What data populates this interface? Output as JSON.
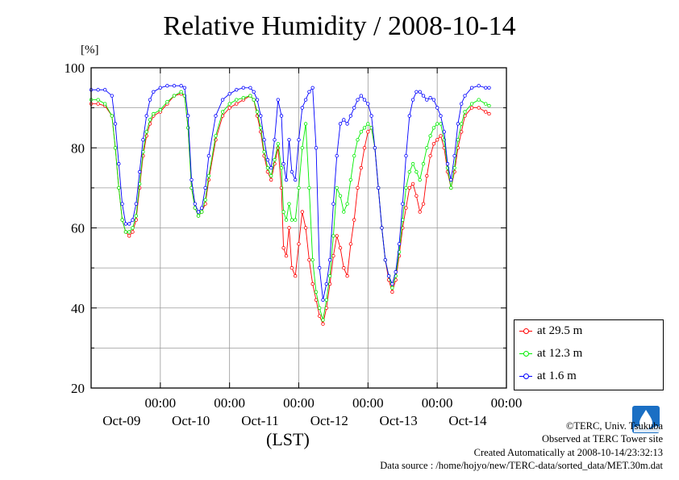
{
  "header": {
    "title": "Relative Humidity / 2008-10-14",
    "unit": "[%]",
    "xaxis_label": "(LST)"
  },
  "credits": {
    "copyright": "©TERC, Univ. Tsukuba",
    "site": "Observed at TERC Tower site",
    "created": "Created Automatically at 2008-10-14/23:32:13",
    "source": "Data source : /home/hojyo/new/TERC-data/sorted_data/MET.30m.dat"
  },
  "chart_data": {
    "type": "line",
    "title": "Relative Humidity / 2008-10-14",
    "ylabel": "[%]",
    "xlabel": "(LST)",
    "ylim": [
      20,
      100
    ],
    "xlim": [
      -0.5,
      5.5
    ],
    "y_ticks": [
      20,
      40,
      60,
      80,
      100
    ],
    "x_ticks": [
      {
        "x": 0.5,
        "time": "00:00",
        "date": "Oct-09"
      },
      {
        "x": 1.5,
        "time": "00:00",
        "date": "Oct-10"
      },
      {
        "x": 2.5,
        "time": "00:00",
        "date": "Oct-11"
      },
      {
        "x": 3.5,
        "time": "00:00",
        "date": "Oct-12"
      },
      {
        "x": 4.5,
        "time": "00:00",
        "date": "Oct-13"
      },
      {
        "x": 5.5,
        "time": "00:00",
        "date": "Oct-14"
      }
    ],
    "grid": true,
    "legend_position": "bottom-right",
    "x_unit": "days from start of plotted window",
    "series": [
      {
        "name": "at 29.5 m",
        "color": "#ff0000",
        "points": [
          [
            -0.5,
            91
          ],
          [
            -0.4,
            91
          ],
          [
            -0.3,
            90.5
          ],
          [
            -0.2,
            88
          ],
          [
            -0.15,
            80
          ],
          [
            -0.1,
            70
          ],
          [
            -0.05,
            62
          ],
          [
            0.0,
            59
          ],
          [
            0.05,
            58
          ],
          [
            0.1,
            59
          ],
          [
            0.15,
            62
          ],
          [
            0.2,
            70
          ],
          [
            0.25,
            78
          ],
          [
            0.3,
            83
          ],
          [
            0.35,
            86
          ],
          [
            0.4,
            88
          ],
          [
            0.5,
            89
          ],
          [
            0.6,
            91
          ],
          [
            0.7,
            93
          ],
          [
            0.8,
            93.5
          ],
          [
            0.85,
            93
          ],
          [
            0.9,
            85
          ],
          [
            0.95,
            70
          ],
          [
            1.0,
            65
          ],
          [
            1.05,
            63
          ],
          [
            1.1,
            64
          ],
          [
            1.15,
            66
          ],
          [
            1.2,
            72
          ],
          [
            1.3,
            82
          ],
          [
            1.4,
            88
          ],
          [
            1.5,
            90
          ],
          [
            1.6,
            91
          ],
          [
            1.7,
            92
          ],
          [
            1.8,
            93
          ],
          [
            1.85,
            92
          ],
          [
            1.9,
            88
          ],
          [
            1.95,
            84
          ],
          [
            2.0,
            78
          ],
          [
            2.05,
            74
          ],
          [
            2.1,
            72
          ],
          [
            2.15,
            76
          ],
          [
            2.2,
            80
          ],
          [
            2.25,
            70
          ],
          [
            2.28,
            55
          ],
          [
            2.32,
            53
          ],
          [
            2.36,
            60
          ],
          [
            2.4,
            50
          ],
          [
            2.45,
            48
          ],
          [
            2.5,
            56
          ],
          [
            2.55,
            64
          ],
          [
            2.6,
            60
          ],
          [
            2.65,
            52
          ],
          [
            2.7,
            46
          ],
          [
            2.75,
            42
          ],
          [
            2.8,
            38
          ],
          [
            2.85,
            36
          ],
          [
            2.9,
            40
          ],
          [
            2.95,
            46
          ],
          [
            3.0,
            53
          ],
          [
            3.05,
            58
          ],
          [
            3.1,
            55
          ],
          [
            3.15,
            50
          ],
          [
            3.2,
            48
          ],
          [
            3.25,
            56
          ],
          [
            3.3,
            62
          ],
          [
            3.35,
            70
          ],
          [
            3.4,
            75
          ],
          [
            3.45,
            80
          ],
          [
            3.5,
            84
          ],
          [
            3.55,
            85
          ],
          [
            3.6,
            80
          ],
          [
            3.65,
            70
          ],
          [
            3.7,
            60
          ],
          [
            3.75,
            52
          ],
          [
            3.8,
            47
          ],
          [
            3.85,
            44
          ],
          [
            3.9,
            47
          ],
          [
            3.95,
            53
          ],
          [
            4.0,
            60
          ],
          [
            4.05,
            65
          ],
          [
            4.1,
            70
          ],
          [
            4.15,
            71
          ],
          [
            4.2,
            68
          ],
          [
            4.25,
            64
          ],
          [
            4.3,
            66
          ],
          [
            4.35,
            73
          ],
          [
            4.4,
            78
          ],
          [
            4.45,
            81
          ],
          [
            4.5,
            82
          ],
          [
            4.55,
            83
          ],
          [
            4.6,
            80
          ],
          [
            4.65,
            74
          ],
          [
            4.7,
            70
          ],
          [
            4.75,
            74
          ],
          [
            4.8,
            80
          ],
          [
            4.85,
            84
          ],
          [
            4.9,
            88
          ],
          [
            5.0,
            90
          ],
          [
            5.1,
            90
          ],
          [
            5.2,
            89
          ],
          [
            5.25,
            88.5
          ]
        ]
      },
      {
        "name": "at 12.3 m",
        "color": "#00ee00",
        "points": [
          [
            -0.5,
            92
          ],
          [
            -0.4,
            92
          ],
          [
            -0.3,
            91
          ],
          [
            -0.2,
            88
          ],
          [
            -0.15,
            80
          ],
          [
            -0.1,
            70
          ],
          [
            -0.05,
            62
          ],
          [
            0.0,
            59
          ],
          [
            0.05,
            59
          ],
          [
            0.1,
            60
          ],
          [
            0.15,
            63
          ],
          [
            0.2,
            71
          ],
          [
            0.25,
            79
          ],
          [
            0.3,
            84
          ],
          [
            0.35,
            87
          ],
          [
            0.4,
            88.5
          ],
          [
            0.5,
            89.5
          ],
          [
            0.6,
            91.5
          ],
          [
            0.7,
            93
          ],
          [
            0.8,
            94
          ],
          [
            0.85,
            93
          ],
          [
            0.9,
            85
          ],
          [
            0.95,
            70
          ],
          [
            1.0,
            65
          ],
          [
            1.05,
            63
          ],
          [
            1.1,
            64
          ],
          [
            1.15,
            67
          ],
          [
            1.2,
            73
          ],
          [
            1.3,
            83
          ],
          [
            1.4,
            89
          ],
          [
            1.5,
            91
          ],
          [
            1.6,
            92
          ],
          [
            1.7,
            92.5
          ],
          [
            1.8,
            93
          ],
          [
            1.85,
            92
          ],
          [
            1.9,
            89
          ],
          [
            1.95,
            85
          ],
          [
            2.0,
            79
          ],
          [
            2.05,
            75
          ],
          [
            2.1,
            73
          ],
          [
            2.15,
            77
          ],
          [
            2.2,
            81
          ],
          [
            2.25,
            75
          ],
          [
            2.28,
            64
          ],
          [
            2.32,
            62
          ],
          [
            2.36,
            66
          ],
          [
            2.4,
            62
          ],
          [
            2.45,
            62
          ],
          [
            2.5,
            70
          ],
          [
            2.55,
            80
          ],
          [
            2.6,
            86
          ],
          [
            2.65,
            70
          ],
          [
            2.7,
            52
          ],
          [
            2.75,
            44
          ],
          [
            2.8,
            40
          ],
          [
            2.85,
            37
          ],
          [
            2.9,
            42
          ],
          [
            2.95,
            48
          ],
          [
            3.0,
            58
          ],
          [
            3.05,
            70
          ],
          [
            3.1,
            68
          ],
          [
            3.15,
            64
          ],
          [
            3.2,
            66
          ],
          [
            3.25,
            72
          ],
          [
            3.3,
            78
          ],
          [
            3.35,
            82
          ],
          [
            3.4,
            84
          ],
          [
            3.45,
            85
          ],
          [
            3.5,
            86
          ],
          [
            3.55,
            85
          ],
          [
            3.6,
            80
          ],
          [
            3.65,
            70
          ],
          [
            3.7,
            60
          ],
          [
            3.75,
            52
          ],
          [
            3.8,
            48
          ],
          [
            3.85,
            45
          ],
          [
            3.9,
            48
          ],
          [
            3.95,
            54
          ],
          [
            4.0,
            62
          ],
          [
            4.05,
            70
          ],
          [
            4.1,
            74
          ],
          [
            4.15,
            76
          ],
          [
            4.2,
            74
          ],
          [
            4.25,
            72
          ],
          [
            4.3,
            76
          ],
          [
            4.35,
            80
          ],
          [
            4.4,
            83
          ],
          [
            4.45,
            85
          ],
          [
            4.5,
            86
          ],
          [
            4.55,
            86
          ],
          [
            4.6,
            82
          ],
          [
            4.65,
            75
          ],
          [
            4.7,
            70
          ],
          [
            4.75,
            75
          ],
          [
            4.8,
            82
          ],
          [
            4.85,
            86
          ],
          [
            4.9,
            89
          ],
          [
            5.0,
            91
          ],
          [
            5.1,
            92
          ],
          [
            5.2,
            91
          ],
          [
            5.25,
            90.5
          ]
        ]
      },
      {
        "name": "at 1.6 m",
        "color": "#0000ff",
        "points": [
          [
            -0.5,
            94.5
          ],
          [
            -0.4,
            94.5
          ],
          [
            -0.3,
            94.5
          ],
          [
            -0.2,
            93
          ],
          [
            -0.15,
            86
          ],
          [
            -0.1,
            76
          ],
          [
            -0.05,
            66
          ],
          [
            0.0,
            61
          ],
          [
            0.05,
            61
          ],
          [
            0.1,
            62
          ],
          [
            0.15,
            66
          ],
          [
            0.2,
            74
          ],
          [
            0.25,
            82
          ],
          [
            0.3,
            88
          ],
          [
            0.35,
            92
          ],
          [
            0.4,
            94
          ],
          [
            0.5,
            95
          ],
          [
            0.6,
            95.5
          ],
          [
            0.7,
            95.5
          ],
          [
            0.8,
            95.5
          ],
          [
            0.85,
            95
          ],
          [
            0.9,
            88
          ],
          [
            0.95,
            72
          ],
          [
            1.0,
            66
          ],
          [
            1.05,
            64
          ],
          [
            1.1,
            65
          ],
          [
            1.15,
            70
          ],
          [
            1.2,
            78
          ],
          [
            1.3,
            88
          ],
          [
            1.4,
            92
          ],
          [
            1.5,
            93.5
          ],
          [
            1.6,
            94.5
          ],
          [
            1.7,
            95
          ],
          [
            1.8,
            95
          ],
          [
            1.85,
            94
          ],
          [
            1.9,
            92
          ],
          [
            1.95,
            88
          ],
          [
            2.0,
            82
          ],
          [
            2.05,
            77
          ],
          [
            2.1,
            75
          ],
          [
            2.15,
            82
          ],
          [
            2.2,
            92
          ],
          [
            2.25,
            88
          ],
          [
            2.28,
            76
          ],
          [
            2.32,
            72
          ],
          [
            2.36,
            82
          ],
          [
            2.4,
            74
          ],
          [
            2.45,
            72
          ],
          [
            2.5,
            82
          ],
          [
            2.55,
            90
          ],
          [
            2.6,
            92
          ],
          [
            2.65,
            94
          ],
          [
            2.7,
            95
          ],
          [
            2.75,
            80
          ],
          [
            2.8,
            50
          ],
          [
            2.85,
            42
          ],
          [
            2.9,
            46
          ],
          [
            2.95,
            52
          ],
          [
            3.0,
            66
          ],
          [
            3.05,
            78
          ],
          [
            3.1,
            86
          ],
          [
            3.15,
            87
          ],
          [
            3.2,
            86
          ],
          [
            3.25,
            88
          ],
          [
            3.3,
            90
          ],
          [
            3.35,
            92
          ],
          [
            3.4,
            93
          ],
          [
            3.45,
            92
          ],
          [
            3.5,
            91
          ],
          [
            3.55,
            88
          ],
          [
            3.6,
            80
          ],
          [
            3.65,
            70
          ],
          [
            3.7,
            60
          ],
          [
            3.75,
            52
          ],
          [
            3.8,
            48
          ],
          [
            3.85,
            46
          ],
          [
            3.9,
            49
          ],
          [
            3.95,
            56
          ],
          [
            4.0,
            66
          ],
          [
            4.05,
            78
          ],
          [
            4.1,
            88
          ],
          [
            4.15,
            92
          ],
          [
            4.2,
            94
          ],
          [
            4.25,
            94
          ],
          [
            4.3,
            93
          ],
          [
            4.35,
            92
          ],
          [
            4.4,
            92.5
          ],
          [
            4.45,
            92
          ],
          [
            4.5,
            90
          ],
          [
            4.55,
            88
          ],
          [
            4.6,
            84
          ],
          [
            4.65,
            76
          ],
          [
            4.7,
            72
          ],
          [
            4.75,
            78
          ],
          [
            4.8,
            86
          ],
          [
            4.85,
            91
          ],
          [
            4.9,
            93
          ],
          [
            5.0,
            95
          ],
          [
            5.1,
            95.5
          ],
          [
            5.2,
            95
          ],
          [
            5.25,
            95
          ]
        ]
      }
    ]
  }
}
